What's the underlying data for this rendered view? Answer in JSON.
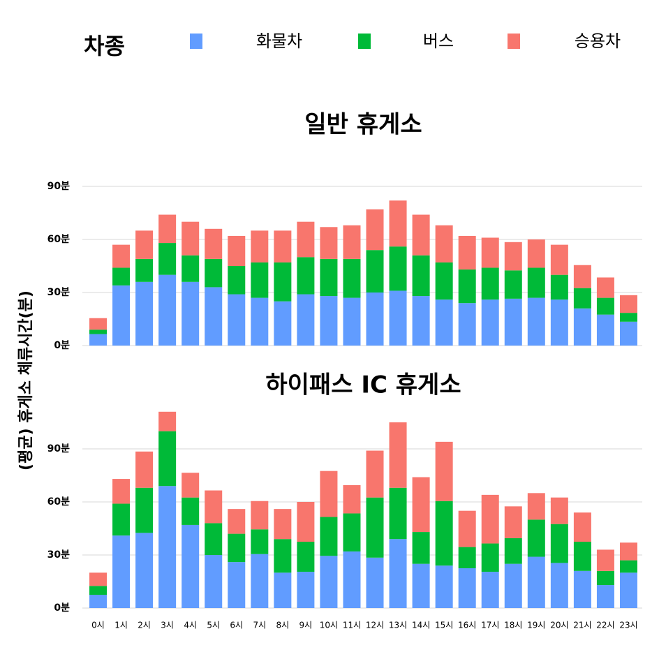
{
  "legend_title": "차종",
  "y_label": "(평균) 휴게소 체류시간(분)",
  "categories": [
    "0시",
    "1시",
    "2시",
    "3시",
    "4시",
    "5시",
    "6시",
    "7시",
    "8시",
    "9시",
    "10시",
    "11시",
    "12시",
    "13시",
    "14시",
    "15시",
    "16시",
    "17시",
    "18시",
    "19시",
    "20시",
    "21시",
    "22시",
    "23시"
  ],
  "chart_data": [
    {
      "type": "stacked_bar",
      "title": "일반 휴게소",
      "ylim": [
        0,
        93
      ],
      "yticks": [
        {
          "value": 0,
          "label": "0분"
        },
        {
          "value": 30,
          "label": "30분"
        },
        {
          "value": 60,
          "label": "60분"
        },
        {
          "value": 90,
          "label": "90분"
        }
      ],
      "grid": true,
      "series": [
        {
          "name": "화물차",
          "color": "#619CFF",
          "values": [
            6.5,
            34,
            36,
            40,
            36,
            33,
            29,
            27,
            25,
            29,
            28,
            27,
            30,
            31,
            28,
            26,
            24,
            26,
            26.5,
            27,
            26,
            21,
            17.5,
            13.5
          ]
        },
        {
          "name": "버스",
          "color": "#00BA38",
          "values": [
            2.5,
            10,
            13,
            18,
            15,
            16,
            16,
            20,
            22,
            21,
            21,
            22,
            24,
            25,
            23,
            21,
            19,
            18,
            16,
            17,
            14,
            11.5,
            9.5,
            5
          ]
        },
        {
          "name": "승용차",
          "color": "#F8766D",
          "values": [
            6.5,
            13,
            16,
            16,
            19,
            17,
            17,
            18,
            18,
            20,
            18,
            19,
            23,
            26,
            23,
            21,
            19,
            17,
            16,
            16,
            17,
            13,
            11.5,
            10
          ]
        }
      ]
    },
    {
      "type": "stacked_bar",
      "title": "하이패스 IC 휴게소",
      "ylim": [
        0,
        113
      ],
      "yticks": [
        {
          "value": 0,
          "label": "0분"
        },
        {
          "value": 30,
          "label": "30분"
        },
        {
          "value": 60,
          "label": "60분"
        },
        {
          "value": 90,
          "label": "90분"
        }
      ],
      "grid": true,
      "series": [
        {
          "name": "화물차",
          "color": "#619CFF",
          "values": [
            7.5,
            41,
            42.5,
            69,
            47,
            30,
            26,
            30.5,
            20,
            20.5,
            29.5,
            32,
            28.5,
            39,
            25,
            24,
            22.5,
            20.5,
            25,
            29,
            25.5,
            21,
            13,
            20
          ]
        },
        {
          "name": "버스",
          "color": "#00BA38",
          "values": [
            5,
            18,
            25.5,
            31,
            15.5,
            18,
            16,
            14,
            19,
            17,
            22,
            21.5,
            34,
            29,
            18,
            36.5,
            12,
            16,
            14.5,
            21,
            22,
            16.5,
            8,
            7
          ]
        },
        {
          "name": "승용차",
          "color": "#F8766D",
          "values": [
            7.5,
            14,
            20.5,
            11,
            14,
            18.5,
            14,
            16,
            17,
            22.5,
            26,
            16,
            26.5,
            37,
            31,
            33.5,
            20.5,
            27.5,
            18,
            15,
            15,
            16.5,
            12,
            10
          ]
        }
      ]
    }
  ]
}
